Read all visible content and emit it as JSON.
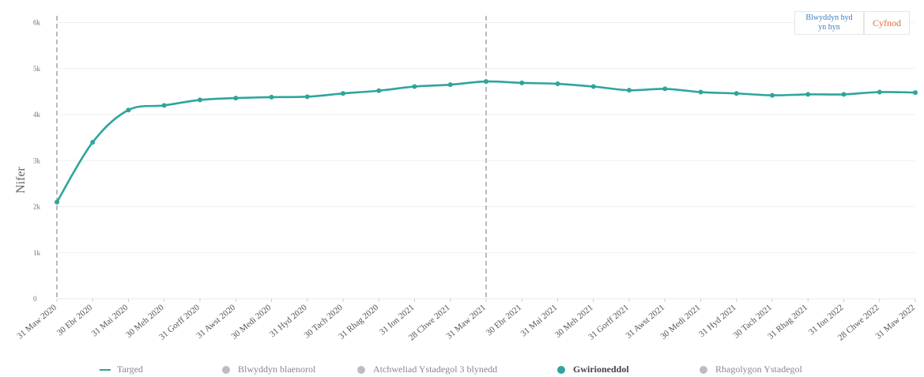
{
  "chart_data": {
    "type": "line",
    "ylabel": "Nifer",
    "ylim": [
      0,
      6000
    ],
    "y_ticks": [
      {
        "value": 0,
        "label": "0"
      },
      {
        "value": 1000,
        "label": "1k"
      },
      {
        "value": 2000,
        "label": "2k"
      },
      {
        "value": 3000,
        "label": "3k"
      },
      {
        "value": 4000,
        "label": "4k"
      },
      {
        "value": 5000,
        "label": "5k"
      },
      {
        "value": 6000,
        "label": "6k"
      }
    ],
    "categories": [
      "31 Maw 2020",
      "30 Ebr 2020",
      "31 Mai 2020",
      "30 Meh 2020",
      "31 Gorff 2020",
      "31 Awst 2020",
      "30 Medi 2020",
      "31 Hyd 2020",
      "30 Tach 2020",
      "31 Rhag 2020",
      "31 Ion 2021",
      "28 Chwe 2021",
      "31 Maw 2021",
      "30 Ebr 2021",
      "31 Mai 2021",
      "30 Meh 2021",
      "31 Gorff 2021",
      "31 Awst 2021",
      "30 Medi 2021",
      "31 Hyd 2021",
      "30 Tach 2021",
      "31 Rhag 2021",
      "31 Ion 2022",
      "28 Chwe 2022",
      "31 Maw 2022"
    ],
    "series": [
      {
        "name": "Gwirioneddol",
        "color": "#2ea59c",
        "values": [
          2100,
          3400,
          4100,
          4200,
          4320,
          4360,
          4380,
          4390,
          4460,
          4520,
          4610,
          4650,
          4720,
          4690,
          4670,
          4610,
          4530,
          4560,
          4490,
          4460,
          4420,
          4440,
          4440,
          4490,
          4480
        ]
      }
    ],
    "vertical_markers": [
      "31 Maw 2020",
      "31 Maw 2021"
    ],
    "grid": true,
    "legend_position": "bottom"
  },
  "toggles": {
    "ytd_label": "Blwyddyn hyd yn hyn",
    "period_label": "Cyfnod"
  },
  "legend": [
    {
      "label": "Targed",
      "marker": "line",
      "color": "#2ea59c"
    },
    {
      "label": "Blwyddyn blaenorol",
      "marker": "dot",
      "color": "#bdbdbd"
    },
    {
      "label": "Atchweliad Ystadegol 3 blynedd",
      "marker": "dot",
      "color": "#bdbdbd"
    },
    {
      "label": "Gwirioneddol",
      "marker": "dot",
      "color": "#2ea59c",
      "active": true
    },
    {
      "label": "Rhagolygon Ystadegol",
      "marker": "dot",
      "color": "#bdbdbd"
    }
  ]
}
